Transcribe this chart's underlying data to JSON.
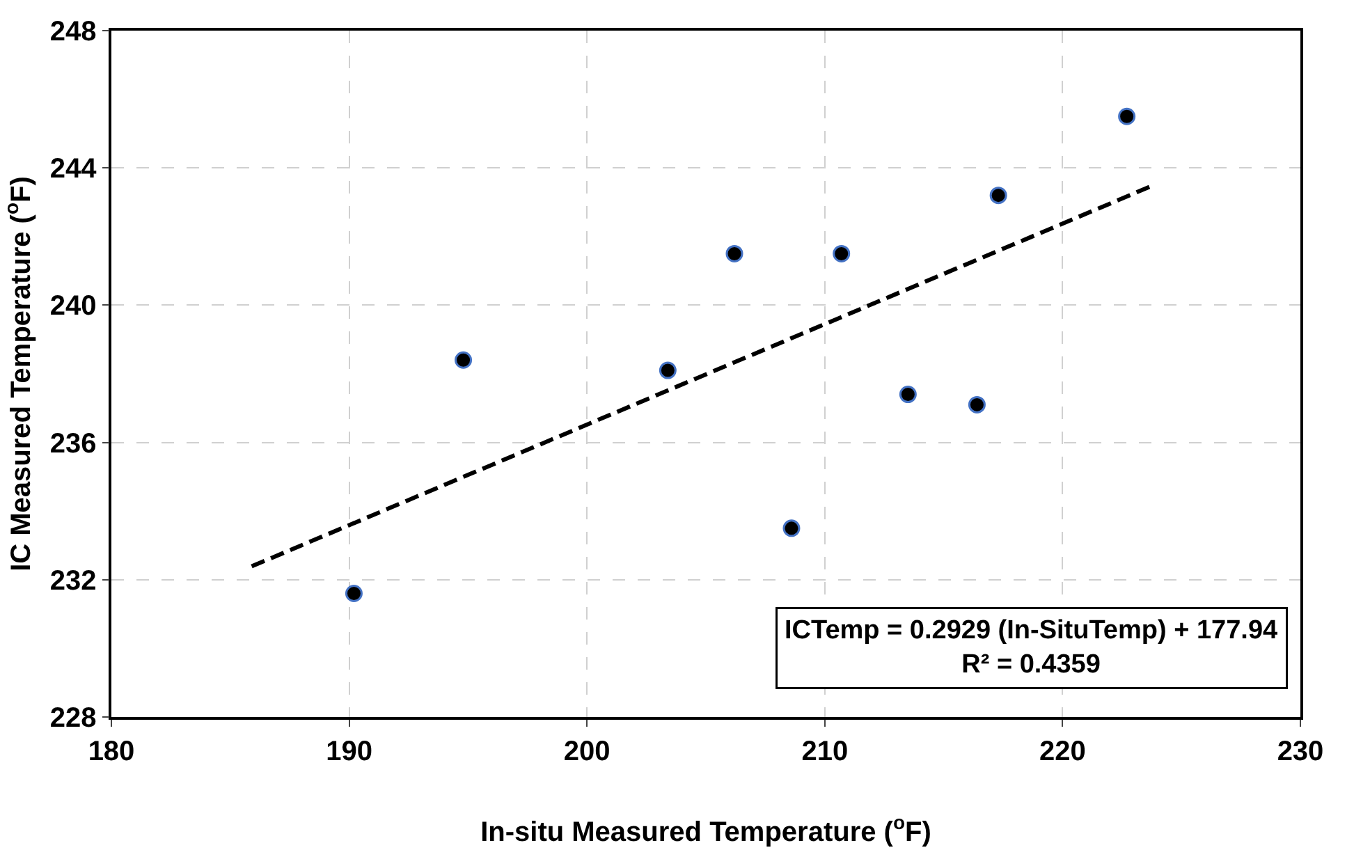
{
  "chart_data": {
    "type": "scatter",
    "xlabel": "In-situ Measured Temperature ($^{o}$F)",
    "ylabel": "IC Measured Temperature ($^{o}$F)",
    "xlim": [
      180,
      230
    ],
    "xticks": [
      180,
      190,
      200,
      210,
      220,
      230
    ],
    "ylim": [
      228,
      248
    ],
    "yticks": [
      228,
      232,
      236,
      240,
      244,
      248
    ],
    "grid": true,
    "series": [
      {
        "color": "#000000",
        "marker": "circle",
        "x": [
          190.2,
          194.8,
          203.4,
          206.2,
          208.6,
          210.7,
          213.5,
          216.4,
          217.3,
          222.7
        ],
        "values": [
          231.6,
          238.4,
          238.1,
          241.5,
          233.5,
          241.5,
          237.4,
          237.1,
          243.2,
          245.5
        ]
      },
      {
        "type": "line",
        "color": "#000000",
        "marker": "none",
        "line_style": "dashed",
        "x": [
          185.9,
          223.7
        ],
        "values": [
          232.39,
          243.46
        ]
      }
    ],
    "annotations": [
      "ICTemp = 0.2929 (In-SituTemp) + 177.94\nR² = 0.4359"
    ]
  }
}
